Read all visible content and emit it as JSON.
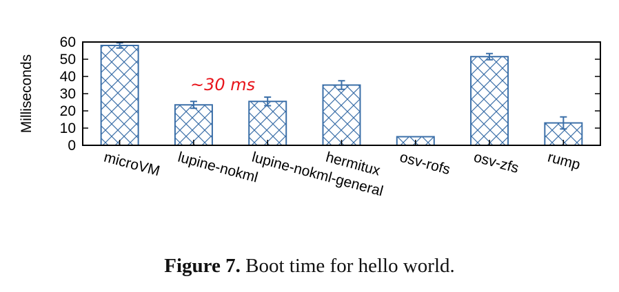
{
  "chart_data": {
    "type": "bar",
    "categories": [
      "microVM",
      "lupine-nokml",
      "lupine-nokml-general",
      "hermitux",
      "osv-rofs",
      "osv-zfs",
      "rump"
    ],
    "values": [
      58,
      23.5,
      25.5,
      35,
      5,
      51.5,
      13
    ],
    "errors": [
      1.5,
      2,
      2.5,
      2.5,
      0,
      1.8,
      3.5
    ],
    "title": "",
    "xlabel": "",
    "ylabel": "Milliseconds",
    "ylim": [
      0,
      60
    ],
    "yticks": [
      0,
      10,
      20,
      30,
      40,
      50,
      60
    ],
    "bar_color": "#3b6fa8",
    "bar_pattern": "crosshatch",
    "annotation": "~30 ms",
    "grid": false,
    "legend": "none"
  },
  "caption": {
    "label": "Figure 7.",
    "text": "Boot time for hello world."
  }
}
